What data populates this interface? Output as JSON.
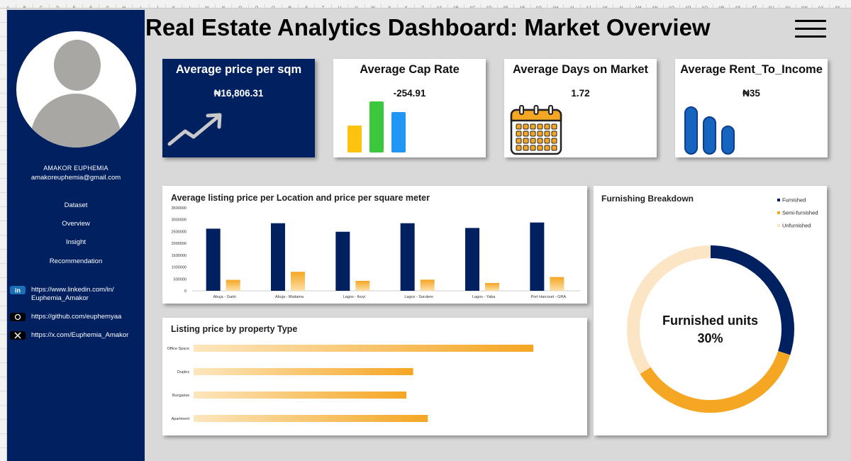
{
  "spreadsheet": {
    "columns": [
      "A",
      "B",
      "C",
      "D",
      "E",
      "F",
      "G",
      "H",
      "I",
      "J",
      "K",
      "L",
      "M",
      "N",
      "O",
      "P",
      "Q",
      "R",
      "S",
      "T",
      "U",
      "V",
      "W",
      "X",
      "Y",
      "Z",
      "AA",
      "AB",
      "AC",
      "AD",
      "AE",
      "AF",
      "AG",
      "AH",
      "AI",
      "AJ",
      "AK",
      "AL",
      "AM",
      "AN",
      "AO",
      "AP",
      "AQ",
      "AR",
      "AS",
      "AT",
      "AU",
      "AV",
      "AW",
      "AX",
      "AY"
    ]
  },
  "sidebar": {
    "name": "AMAKOR EUPHEMIA",
    "email": "amakoreuphemia@gmail.com",
    "nav": [
      "Dataset",
      "Overview",
      "Insight",
      "Recommendation"
    ],
    "links": {
      "linkedin": "https://www.linkedin.com/in/ Euphemia_Amakor",
      "github": "https://github.com/euphemyaa",
      "x": "https://x.com/Euphemia_Amakor"
    }
  },
  "header": {
    "title": "Real Estate Analytics Dashboard: Market Overview"
  },
  "kpis": {
    "price": {
      "title": "Average price per sqm",
      "value": "₦16,806.31"
    },
    "cap": {
      "title": "Average Cap Rate",
      "value": "-254.91"
    },
    "days": {
      "title": "Average Days on Market",
      "value": "1.72"
    },
    "rent": {
      "title": "Average Rent_To_Income",
      "value": "₦35"
    }
  },
  "icon_colors": {
    "cap_bars": [
      "#FFC20E",
      "#3CC83C",
      "#2196F3"
    ],
    "rent_bars": "#1565C0",
    "calendar": "#F5A623"
  },
  "chart_data": [
    {
      "type": "bar",
      "title": "Average listing price per Location and price per square meter",
      "categories": [
        "Abuja - Garki",
        "Abuja - Maitama",
        "Lagos - Ikoyi",
        "Lagos - Surulere",
        "Lagos - Yaba",
        "Port Harcourt - GRA"
      ],
      "series": [
        {
          "values": [
            2620000,
            2850000,
            2490000,
            2850000,
            2650000,
            2880000
          ],
          "color": "#012060"
        },
        {
          "values": [
            460000,
            800000,
            420000,
            470000,
            330000,
            580000
          ],
          "color": "#F5A623"
        }
      ],
      "yticks": [
        "0",
        "500000",
        "1000000",
        "1500000",
        "2000000",
        "2500000",
        "3000000",
        "3500000"
      ],
      "ylim": [
        0,
        3500000
      ],
      "grid": false
    },
    {
      "type": "bar",
      "orientation": "horizontal",
      "title": "Listing price by property Type",
      "categories": [
        "Office Space",
        "Duplex",
        "Bungalow",
        "Apartment"
      ],
      "values": [
        6500000,
        4200000,
        4070000,
        4480000
      ],
      "color": "#F5A623"
    },
    {
      "type": "pie",
      "style": "donut",
      "title": "Furnishing Breakdown",
      "labels": [
        "Furnished",
        "Semi-furnished",
        "Unfurnished"
      ],
      "values": [
        30,
        36,
        34
      ],
      "colors": [
        "#012060",
        "#F5A623",
        "#FBE5C4"
      ],
      "legend": "top-right",
      "center_label": "Furnished units",
      "center_value": "30%"
    }
  ]
}
